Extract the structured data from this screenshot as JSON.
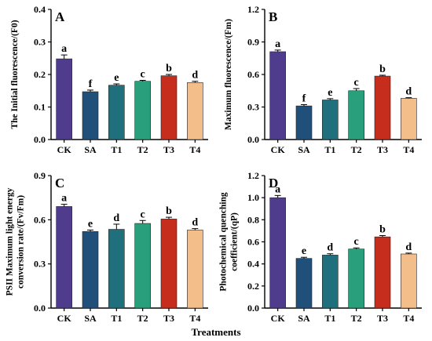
{
  "x_axis_title": "Treatments",
  "colors": {
    "CK": "#4f3c8c",
    "SA": "#204f7a",
    "T1": "#1f6f7c",
    "T2": "#2a9f7c",
    "T3": "#c62d1c",
    "T4": "#f4be8a"
  },
  "chart_data": [
    {
      "type": "bar",
      "panel": "A",
      "categories": [
        "CK",
        "SA",
        "T1",
        "T2",
        "T3",
        "T4"
      ],
      "values": [
        0.248,
        0.147,
        0.167,
        0.179,
        0.196,
        0.175
      ],
      "errors": [
        0.012,
        0.005,
        0.004,
        0.003,
        0.004,
        0.004
      ],
      "letters": [
        "a",
        "f",
        "e",
        "c",
        "b",
        "d"
      ],
      "ylabel": "The Initial fluorescence/(F0)",
      "ylim": [
        0,
        0.4
      ],
      "yticks": [
        0.0,
        0.1,
        0.2,
        0.3,
        0.4
      ],
      "ytick_labels": [
        "0.0",
        "0.1",
        "0.2",
        "0.3",
        "0.4"
      ]
    },
    {
      "type": "bar",
      "panel": "B",
      "categories": [
        "CK",
        "SA",
        "T1",
        "T2",
        "T3",
        "T4"
      ],
      "values": [
        0.81,
        0.31,
        0.365,
        0.45,
        0.585,
        0.38
      ],
      "errors": [
        0.015,
        0.012,
        0.012,
        0.02,
        0.008,
        0.006
      ],
      "letters": [
        "a",
        "f",
        "e",
        "c",
        "b",
        "d"
      ],
      "ylabel": "Maximum fluorescence/(Fm)",
      "ylim": [
        0,
        1.2
      ],
      "yticks": [
        0.0,
        0.3,
        0.6,
        0.9,
        1.2
      ],
      "ytick_labels": [
        "0.0",
        "0.3",
        "0.6",
        "0.9",
        "1.2"
      ]
    },
    {
      "type": "bar",
      "panel": "C",
      "categories": [
        "CK",
        "SA",
        "T1",
        "T2",
        "T3",
        "T4"
      ],
      "values": [
        0.69,
        0.52,
        0.535,
        0.575,
        0.605,
        0.53
      ],
      "errors": [
        0.015,
        0.01,
        0.035,
        0.02,
        0.012,
        0.01
      ],
      "letters": [
        "a",
        "e",
        "d",
        "c",
        "b",
        "d"
      ],
      "ylabel": "PSII Maximum light energy conversion rate/(Fv/Fm)",
      "ylabel_lines": [
        "PSII Maximum light energy",
        "conversion rate/(Fv/Fm)"
      ],
      "ylim": [
        0,
        0.9
      ],
      "yticks": [
        0.0,
        0.3,
        0.6,
        0.9
      ],
      "ytick_labels": [
        "0.0",
        "0.3",
        "0.6",
        "0.9"
      ]
    },
    {
      "type": "bar",
      "panel": "D",
      "categories": [
        "CK",
        "SA",
        "T1",
        "T2",
        "T3",
        "T4"
      ],
      "values": [
        1.0,
        0.45,
        0.48,
        0.535,
        0.645,
        0.49
      ],
      "errors": [
        0.02,
        0.01,
        0.012,
        0.01,
        0.012,
        0.008
      ],
      "letters": [
        "a",
        "e",
        "d",
        "c",
        "b",
        "d"
      ],
      "ylabel": "Photochemical quenching coefficient/(qP)",
      "ylabel_lines": [
        "Photochemical quenching",
        "coefficient/(qP)"
      ],
      "ylim": [
        0,
        1.2
      ],
      "yticks": [
        0.0,
        0.2,
        0.4,
        0.6,
        0.8,
        1.0,
        1.2
      ],
      "ytick_labels": [
        "0.0",
        "0.2",
        "0.4",
        "0.6",
        "0.8",
        "1.0",
        "1.2"
      ]
    }
  ]
}
